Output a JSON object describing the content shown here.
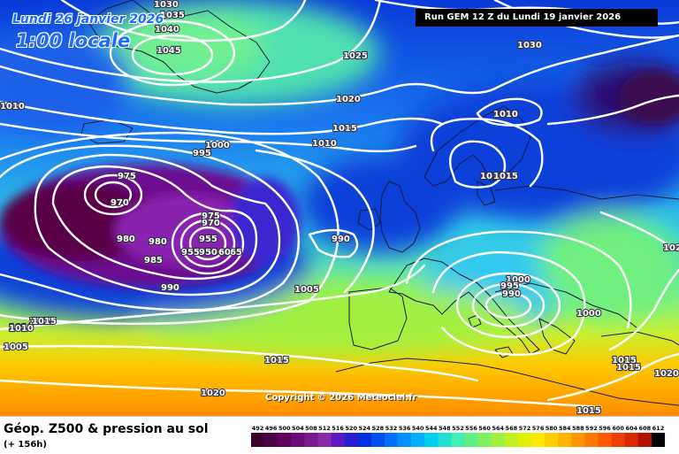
{
  "header": {
    "date": "Lundi 26 janvier 2026",
    "time": "1:00 locale",
    "run": "Run GEM 12 Z du Lundi 19 janvier 2026"
  },
  "copyright": "Copyright © 2026 Meteociel.fr",
  "footer": {
    "product": "Géop. Z500 & pression au sol",
    "offset": "(+ 156h)"
  },
  "legend": {
    "ticks": [
      "492",
      "496",
      "500",
      "504",
      "508",
      "512",
      "516",
      "520",
      "524",
      "528",
      "532",
      "536",
      "540",
      "544",
      "548",
      "552",
      "556",
      "560",
      "564",
      "568",
      "572",
      "576",
      "580",
      "584",
      "588",
      "592",
      "596",
      "600",
      "604",
      "608",
      "612"
    ],
    "colors": [
      "#3a0030",
      "#4c0046",
      "#5f005e",
      "#700a78",
      "#7a1a90",
      "#8a2aa8",
      "#5a1ac0",
      "#2a20d0",
      "#0030e0",
      "#0050f0",
      "#0070ff",
      "#0090ff",
      "#00b0ff",
      "#00d0f0",
      "#20e0d0",
      "#40f0b0",
      "#60f080",
      "#80f060",
      "#a0f040",
      "#c0f020",
      "#e0f000",
      "#ffe800",
      "#ffd000",
      "#ffb400",
      "#ff9600",
      "#ff7800",
      "#ff5a00",
      "#f03c00",
      "#d82800",
      "#b01400",
      "#000000"
    ]
  },
  "isobar_labels": [
    "1030",
    "1035",
    "1040",
    "1045",
    "1025",
    "1030",
    "1020",
    "1010",
    "1015",
    "1010",
    "1010",
    "995",
    "1000",
    "975",
    "970",
    "975",
    "970",
    "980",
    "980",
    "955",
    "955",
    "965",
    "960",
    "950",
    "985",
    "990",
    "990",
    "1005",
    "1010",
    "1015",
    "1015",
    "1010",
    "1005",
    "1015",
    "1020",
    "1000",
    "995",
    "990",
    "1000",
    "1010",
    "1015",
    "1015",
    "1015",
    "1020",
    "1015",
    "102"
  ]
}
